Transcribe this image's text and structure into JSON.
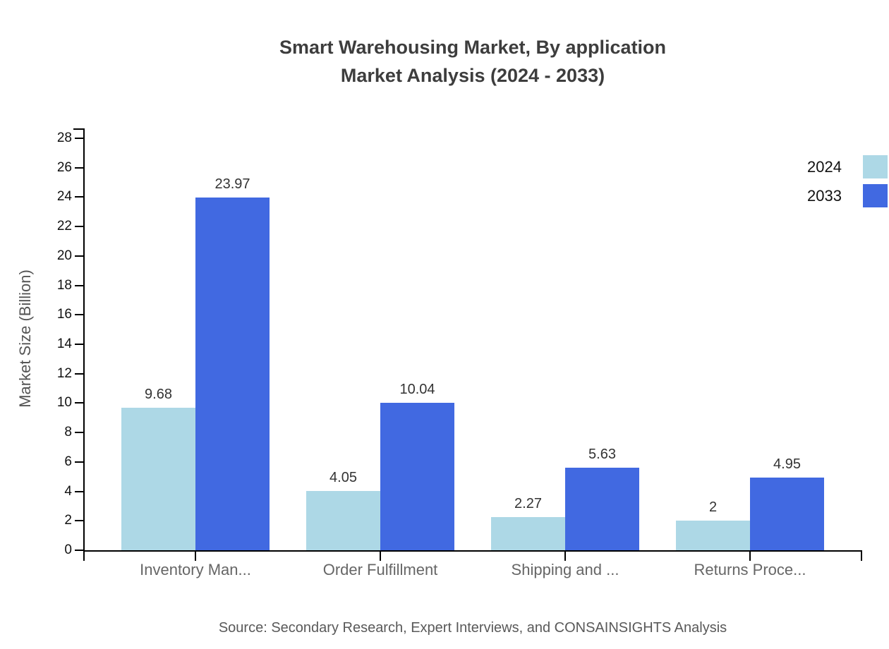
{
  "chart_data": {
    "type": "bar",
    "title": "Smart Warehousing Market, By application",
    "subtitle": "Market Analysis (2024 - 2033)",
    "ylabel": "Market Size (Billion)",
    "ylim": [
      0,
      28
    ],
    "yticks": [
      0,
      2,
      4,
      6,
      8,
      10,
      12,
      14,
      16,
      18,
      20,
      22,
      24,
      26,
      28
    ],
    "categories": [
      "Inventory Man...",
      "Order Fulfillment",
      "Shipping and ...",
      "Returns Proce..."
    ],
    "series": [
      {
        "name": "2024",
        "color": "#ADD8E6",
        "values": [
          9.68,
          4.05,
          2.27,
          2
        ],
        "labels": [
          "9.68",
          "4.05",
          "2.27",
          "2"
        ]
      },
      {
        "name": "2033",
        "color": "#4169E1",
        "values": [
          23.97,
          10.04,
          5.63,
          4.95
        ],
        "labels": [
          "23.97",
          "10.04",
          "5.63",
          "4.95"
        ]
      }
    ],
    "legend_position": "right",
    "grid": false,
    "source": "Source: Secondary Research, Expert Interviews, and CONSAINSIGHTS Analysis"
  }
}
